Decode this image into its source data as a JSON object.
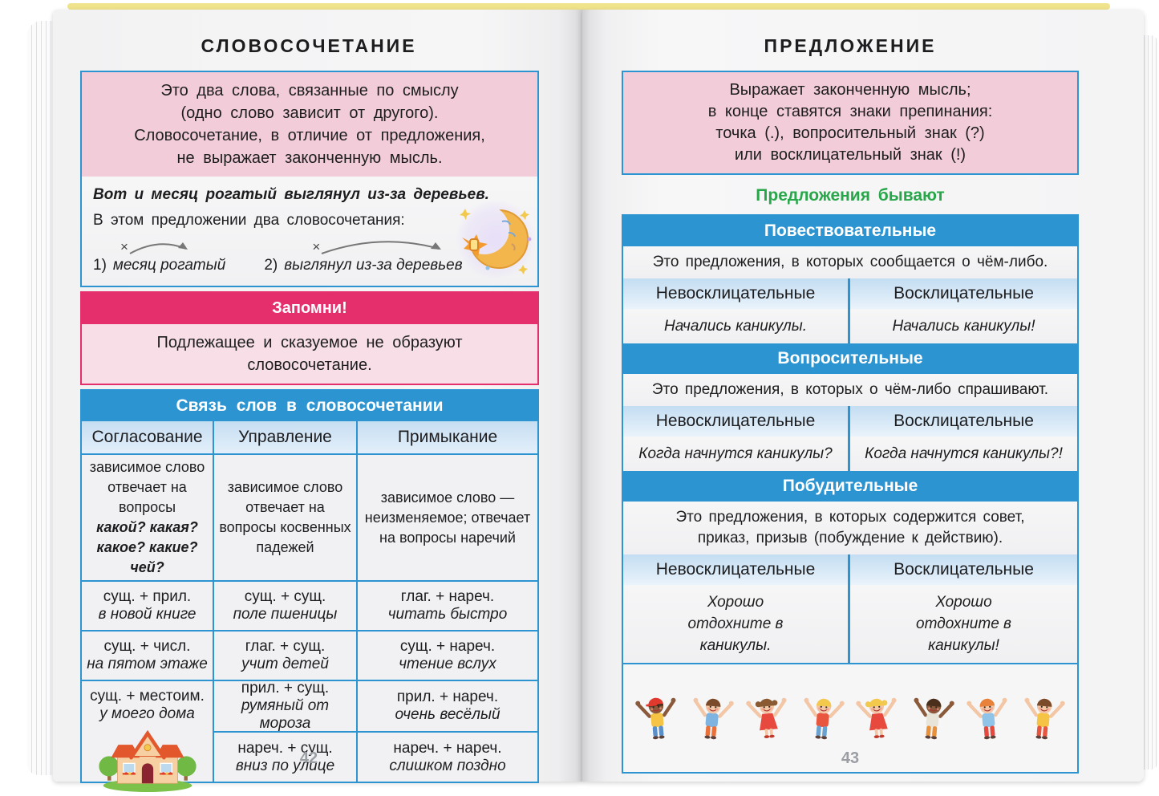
{
  "left_page": {
    "title": "СЛОВОСОЧЕТАНИЕ",
    "page_number": "42",
    "intro_lines": [
      "Это два слова, связанные по смыслу",
      "(одно слово зависит от другого).",
      "Словосочетание, в отличие от предложения,",
      "не выражает законченную мысль."
    ],
    "example": {
      "sentence": "Вот и месяц рогатый выглянул из-за деревьев.",
      "note": "В этом предложении два словосочетания:",
      "x_mark": "×",
      "items": [
        {
          "num": "1)",
          "text": "месяц рогатый"
        },
        {
          "num": "2)",
          "text": "выглянул из-за деревьев"
        }
      ]
    },
    "remember": {
      "header": "Запомни!",
      "line1": "Подлежащее и сказуемое не образуют",
      "line2": "словосочетание."
    },
    "table": {
      "title": "Связь слов в словосочетании",
      "columns": [
        {
          "header": "Согласование",
          "desc_plain": "зависимое слово отвечает на вопросы",
          "desc_bold": "какой? какая? какое? какие? чей?",
          "rows": [
            {
              "formula": "сущ. + прил.",
              "example": "в новой книге"
            },
            {
              "formula": "сущ. + числ.",
              "example": "на пятом этаже"
            },
            {
              "formula": "сущ. + местоим.",
              "example": "у моего дома"
            }
          ]
        },
        {
          "header": "Управление",
          "desc_plain": "зависимое слово отвечает на вопросы косвенных падежей",
          "desc_bold": "",
          "rows": [
            {
              "formula": "сущ. + сущ.",
              "example": "поле пшеницы"
            },
            {
              "formula": "глаг. + сущ.",
              "example": "учит детей"
            },
            {
              "formula": "прил. + сущ.",
              "example": "румяный от мороза"
            },
            {
              "formula": "нареч. + сущ.",
              "example": "вниз по улице"
            }
          ]
        },
        {
          "header": "Примыкание",
          "desc_plain": "зависимое слово — неизменяемое; отвечает на вопросы наречий",
          "desc_bold": "",
          "rows": [
            {
              "formula": "глаг. + нареч.",
              "example": "читать быстро"
            },
            {
              "formula": "сущ. + нареч.",
              "example": "чтение вслух"
            },
            {
              "formula": "прил. + нареч.",
              "example": "очень весёлый"
            },
            {
              "formula": "нареч. + нареч.",
              "example": "слишком поздно"
            }
          ]
        }
      ]
    }
  },
  "right_page": {
    "title": "ПРЕДЛОЖЕНИЕ",
    "page_number": "43",
    "intro_lines": [
      "Выражает законченную мысль;",
      "в конце ставятся знаки препинания:",
      "точка (.), вопросительный знак (?)",
      "или восклицательный знак (!)"
    ],
    "subtitle": "Предложения бывают",
    "sections": [
      {
        "header": "Повествовательные",
        "description": "Это предложения, в которых сообщается о чём-либо.",
        "col_left": "Невосклицательные",
        "col_right": "Восклицательные",
        "example_left": "Начались каникулы.",
        "example_right": "Начались каникулы!"
      },
      {
        "header": "Вопросительные",
        "description": "Это предложения, в которых о чём-либо спрашивают.",
        "col_left": "Невосклицательные",
        "col_right": "Восклицательные",
        "example_left": "Когда начнутся каникулы?",
        "example_right": "Когда начнутся каникулы?!"
      },
      {
        "header": "Побудительные",
        "description": "Это предложения, в которых содержится совет, приказ, призыв (побуждение к действию).",
        "col_left": "Невосклицательные",
        "col_right": "Восклицательные",
        "example_left": "Хорошо отдохните в каникулы.",
        "example_right": "Хорошо отдохните в каникулы!"
      }
    ],
    "children": {
      "kids": [
        {
          "skin": "#8a5a3b",
          "hair": "#3a281c",
          "cap": "#e03a2f",
          "shirt": "#f6c445",
          "pants": "#5b8fc7",
          "dress": ""
        },
        {
          "skin": "#f3c6a5",
          "hair": "#7a4a2b",
          "cap": "",
          "shirt": "#7fb3e0",
          "pants": "#e8703a",
          "dress": ""
        },
        {
          "skin": "#f3c6a5",
          "hair": "#8a5a33",
          "cap": "",
          "shirt": "",
          "pants": "",
          "dress": "#e8493f"
        },
        {
          "skin": "#f3c6a5",
          "hair": "#f2c94c",
          "cap": "",
          "shirt": "#e8563f",
          "pants": "#6aa1cf",
          "dress": ""
        },
        {
          "skin": "#f3c6a5",
          "hair": "#f2c94c",
          "cap": "",
          "shirt": "",
          "pants": "",
          "dress": "#e8493f"
        },
        {
          "skin": "#8a5a3b",
          "hair": "#4a2f1d",
          "cap": "",
          "shirt": "#e9e4d8",
          "pants": "#e8913a",
          "dress": ""
        },
        {
          "skin": "#f3c6a5",
          "hair": "#e8823a",
          "cap": "",
          "shirt": "#8fc3e8",
          "pants": "#e8493f",
          "dress": ""
        },
        {
          "skin": "#f3c6a5",
          "hair": "#7a4a2b",
          "cap": "",
          "shirt": "#f6c445",
          "pants": "#e8563f",
          "dress": ""
        }
      ]
    }
  },
  "colors": {
    "accent_blue": "#2b94d1",
    "accent_magenta": "#e52f6c",
    "accent_green": "#27a74a",
    "pink_fill": "#f2cdd9",
    "pink_light_fill": "#f7dee7",
    "light_blue_fill": "#c3ddf2"
  }
}
